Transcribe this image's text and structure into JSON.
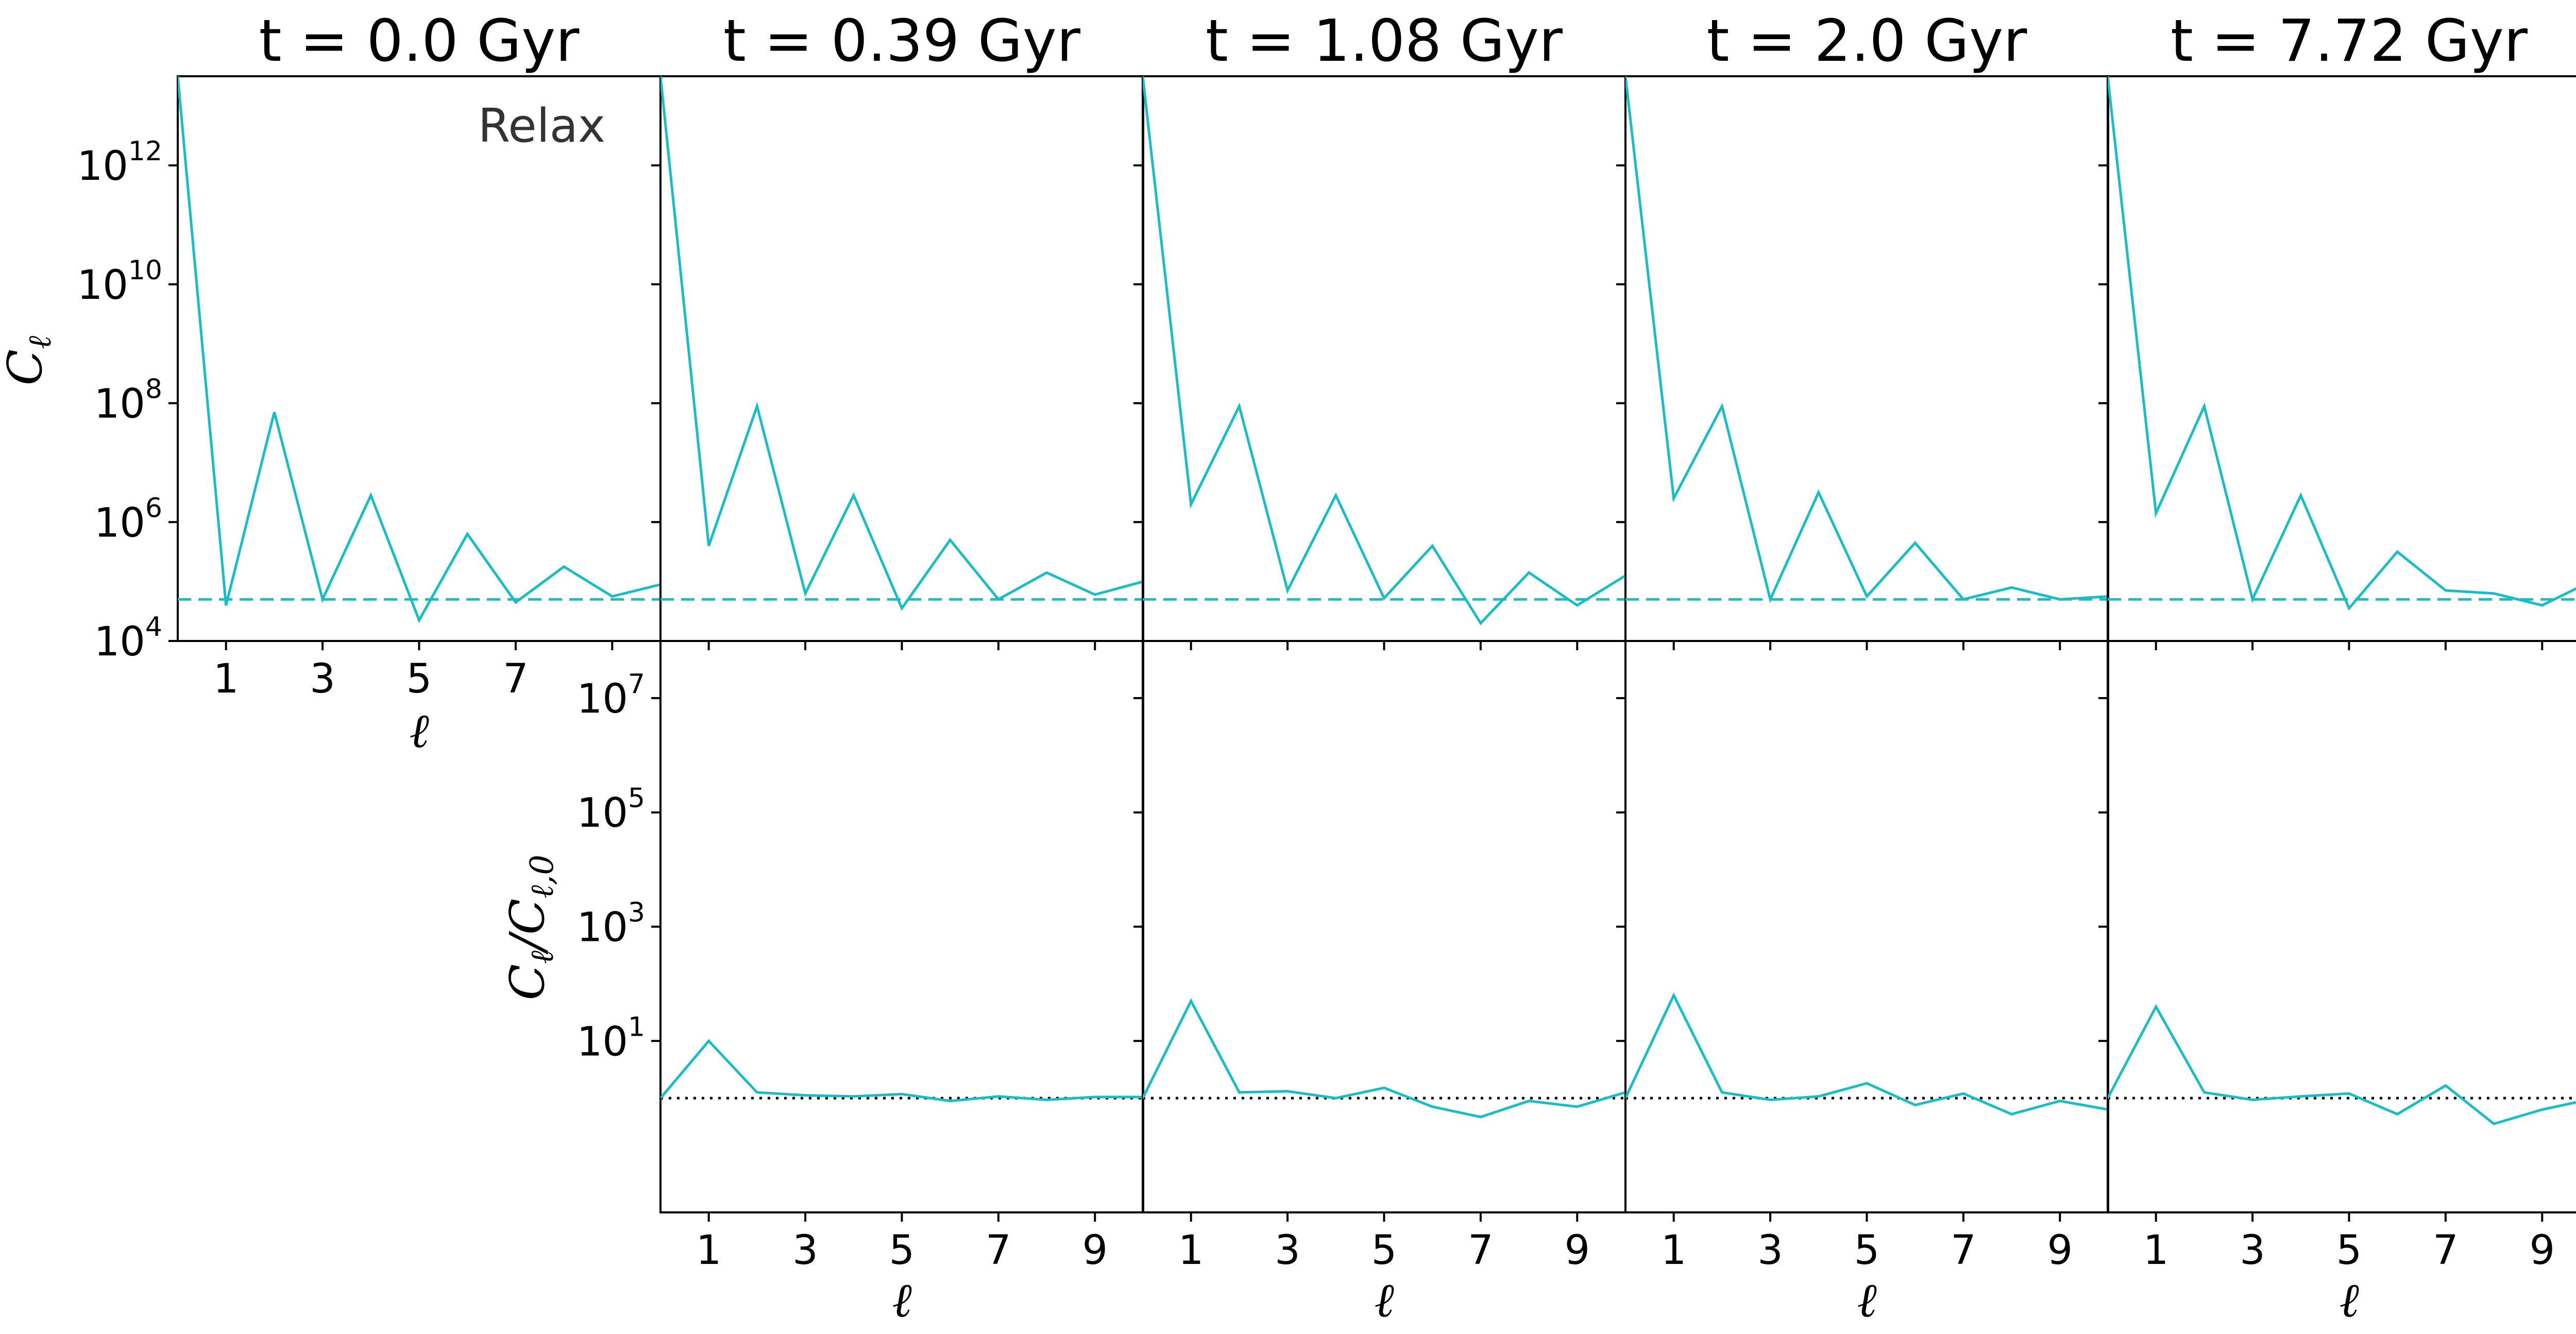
{
  "chart_data": {
    "type": "line",
    "panel_titles": [
      "t = 0.0 Gyr",
      "t = 0.39 Gyr",
      "t = 1.08 Gyr",
      "t = 2.0 Gyr",
      "t = 7.72 Gyr"
    ],
    "annotation": "Relax",
    "x": [
      0,
      1,
      2,
      3,
      4,
      5,
      6,
      7,
      8,
      9,
      10
    ],
    "xticks": [
      1,
      3,
      5,
      7,
      9
    ],
    "xlim": [
      0,
      10
    ],
    "xlabel": "ℓ",
    "colors": {
      "series": "#17bec8",
      "reference": "#000000"
    },
    "top_row": {
      "ylabel": "C_ℓ",
      "yscale": "log",
      "ylim_log10": [
        4,
        13.5
      ],
      "yticks_log10": [
        4,
        6,
        8,
        10,
        12
      ],
      "reference_line_log10": 4.7,
      "reference_style": "dashed",
      "series_log10": [
        [
          13.5,
          4.6,
          7.85,
          4.7,
          6.45,
          4.35,
          5.8,
          4.65,
          5.25,
          4.75,
          4.95
        ],
        [
          13.5,
          5.6,
          7.95,
          4.8,
          6.45,
          4.55,
          5.7,
          4.7,
          5.15,
          4.78,
          5.0
        ],
        [
          13.5,
          6.3,
          7.95,
          4.85,
          6.45,
          4.72,
          5.6,
          4.3,
          5.15,
          4.6,
          5.1
        ],
        [
          13.5,
          6.4,
          7.95,
          4.7,
          6.5,
          4.75,
          5.65,
          4.7,
          4.9,
          4.7,
          4.75
        ],
        [
          13.5,
          6.15,
          7.95,
          4.7,
          6.45,
          4.55,
          5.5,
          4.85,
          4.8,
          4.6,
          5.0
        ]
      ]
    },
    "bottom_row": {
      "ylabel": "C_ℓ/C_ℓ,0",
      "yscale": "log",
      "ylim_log10": [
        -2,
        8
      ],
      "yticks_log10": [
        1,
        3,
        5,
        7
      ],
      "reference_line_log10": 0,
      "reference_style": "dotted",
      "panels_shown": [
        2,
        3,
        4,
        5
      ],
      "series_log10": [
        [
          0,
          1.0,
          0.1,
          0.05,
          0.03,
          0.07,
          -0.05,
          0.03,
          -0.03,
          0.02,
          0.02
        ],
        [
          0,
          1.7,
          0.1,
          0.12,
          0.0,
          0.18,
          -0.15,
          -0.33,
          -0.05,
          -0.15,
          0.1
        ],
        [
          0,
          1.8,
          0.1,
          -0.03,
          0.03,
          0.26,
          -0.12,
          0.08,
          -0.28,
          -0.05,
          -0.2
        ],
        [
          0,
          1.6,
          0.1,
          -0.03,
          0.03,
          0.08,
          -0.28,
          0.22,
          -0.45,
          -0.2,
          -0.02
        ]
      ]
    }
  }
}
